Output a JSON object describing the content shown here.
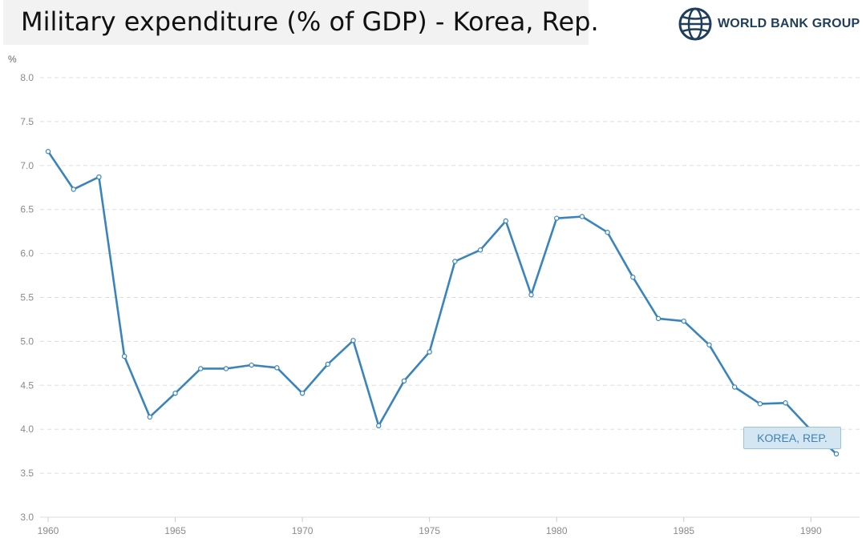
{
  "title": "Military expenditure (% of GDP) - Korea, Rep.",
  "brand": {
    "name": "WORLD BANK GROUP",
    "icon": "globe-icon"
  },
  "colors": {
    "line": "#3a84bc",
    "grid": "#dddddd",
    "label_bg": "#d4e6f1"
  },
  "chart_data": {
    "type": "line",
    "title": "Military expenditure (% of GDP) - Korea, Rep.",
    "ylabel": "%",
    "ylim": [
      3.0,
      8.0
    ],
    "yticks": [
      "3.0",
      "3.5",
      "4.0",
      "4.5",
      "5.0",
      "5.5",
      "6.0",
      "6.5",
      "7.0",
      "7.5",
      "8.0"
    ],
    "xlim": [
      1960,
      1991
    ],
    "xticks": [
      "1960",
      "1965",
      "1970",
      "1975",
      "1980",
      "1985",
      "1990"
    ],
    "grid": true,
    "series": [
      {
        "name": "KOREA, REP.",
        "x": [
          1960,
          1961,
          1962,
          1963,
          1964,
          1965,
          1966,
          1967,
          1968,
          1969,
          1970,
          1971,
          1972,
          1973,
          1974,
          1975,
          1976,
          1977,
          1978,
          1979,
          1980,
          1981,
          1982,
          1983,
          1984,
          1985,
          1986,
          1987,
          1988,
          1989,
          1990,
          1991
        ],
        "values": [
          7.16,
          6.73,
          6.87,
          4.83,
          4.14,
          4.41,
          4.69,
          4.69,
          4.73,
          4.7,
          4.41,
          4.74,
          5.01,
          4.04,
          4.55,
          4.88,
          5.91,
          6.04,
          6.37,
          5.53,
          6.4,
          6.42,
          6.24,
          5.73,
          5.26,
          5.23,
          4.96,
          4.48,
          4.29,
          4.3,
          3.99,
          3.72
        ]
      }
    ]
  }
}
